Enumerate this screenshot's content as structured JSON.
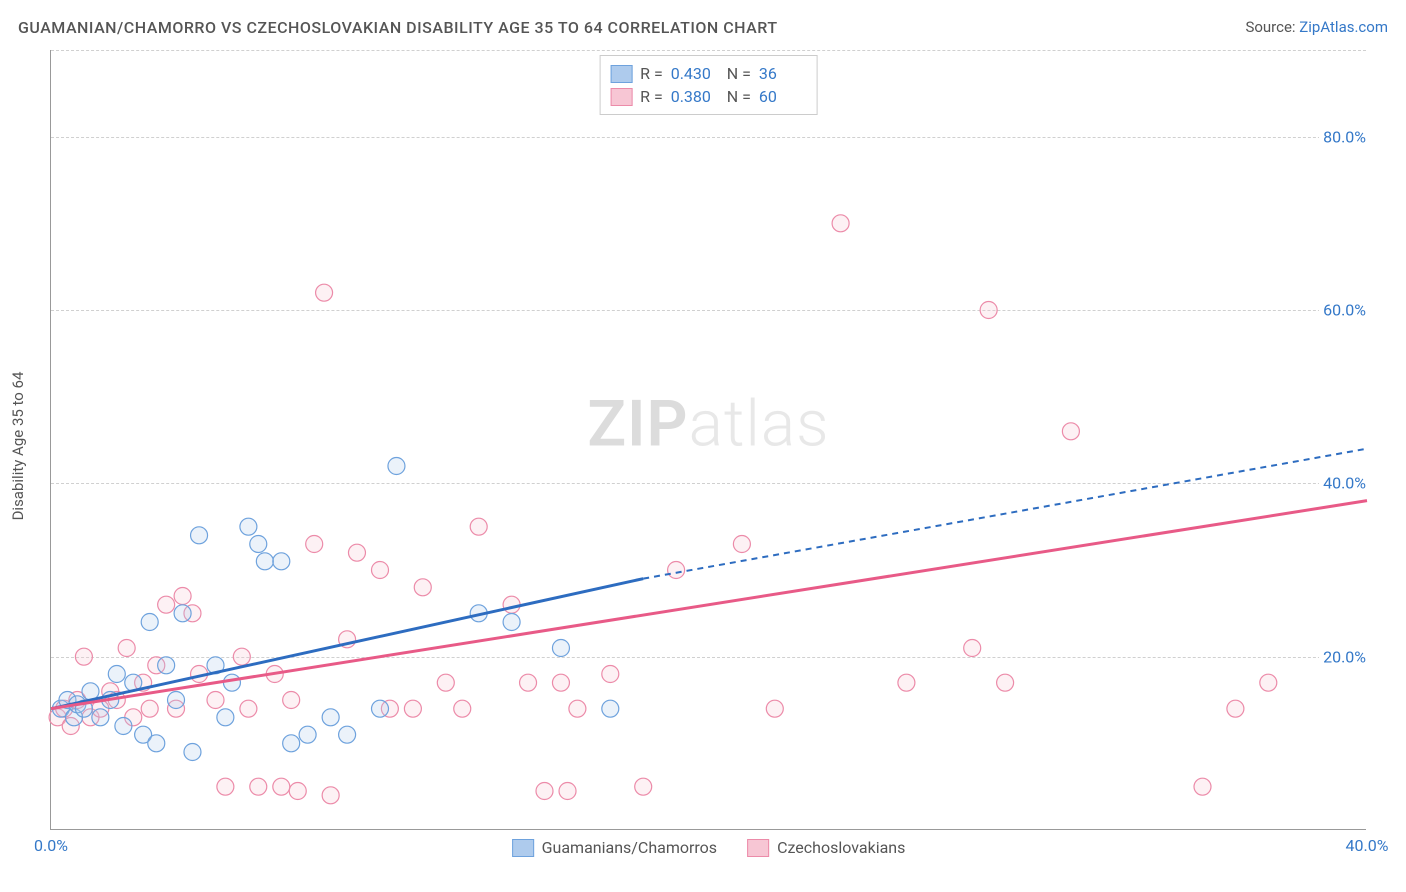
{
  "title": "GUAMANIAN/CHAMORRO VS CZECHOSLOVAKIAN DISABILITY AGE 35 TO 64 CORRELATION CHART",
  "source_label": "Source: ",
  "source_link": "ZipAtlas.com",
  "ylabel": "Disability Age 35 to 64",
  "watermark_a": "ZIP",
  "watermark_b": "atlas",
  "chart": {
    "type": "scatter",
    "xlim": [
      0,
      40
    ],
    "ylim": [
      0,
      90
    ],
    "xticks": [
      {
        "v": 0,
        "label": "0.0%"
      },
      {
        "v": 40,
        "label": "40.0%"
      }
    ],
    "yticks": [
      {
        "v": 20,
        "label": "20.0%"
      },
      {
        "v": 40,
        "label": "40.0%"
      },
      {
        "v": 60,
        "label": "60.0%"
      },
      {
        "v": 80,
        "label": "80.0%"
      }
    ],
    "background_color": "#ffffff",
    "grid_color": "#d0d0d0",
    "marker_radius": 8.5,
    "marker_stroke_width": 1.2,
    "marker_fill_opacity": 0.25,
    "stats_legend": [
      {
        "swatch_fill": "#aecbed",
        "swatch_border": "#6ea2dd",
        "r_label": "R = ",
        "r": "0.430",
        "n_label": "N = ",
        "n": "36"
      },
      {
        "swatch_fill": "#f7c6d4",
        "swatch_border": "#ec8ba9",
        "r_label": "R = ",
        "r": "0.380",
        "n_label": "N = ",
        "n": "60"
      }
    ],
    "series_legend": [
      {
        "swatch_fill": "#aecbed",
        "swatch_border": "#6ea2dd",
        "label": "Guamanians/Chamorros"
      },
      {
        "swatch_fill": "#f7c6d4",
        "swatch_border": "#ec8ba9",
        "label": "Czechoslovakians"
      }
    ],
    "series": [
      {
        "name": "Guamanians/Chamorros",
        "color_fill": "#aecbed",
        "color_stroke": "#6ea2dd",
        "trend_color": "#2d6cc0",
        "trend_solid": {
          "x1": 0,
          "y1": 14,
          "x2": 18,
          "y2": 29
        },
        "trend_dash": {
          "x1": 18,
          "y1": 29,
          "x2": 40,
          "y2": 44
        },
        "points": [
          [
            0.3,
            14
          ],
          [
            0.5,
            15
          ],
          [
            0.7,
            13
          ],
          [
            0.8,
            14.5
          ],
          [
            1,
            14
          ],
          [
            1.2,
            16
          ],
          [
            1.5,
            13
          ],
          [
            1.8,
            15
          ],
          [
            2,
            18
          ],
          [
            2.2,
            12
          ],
          [
            2.5,
            17
          ],
          [
            2.8,
            11
          ],
          [
            3,
            24
          ],
          [
            3.2,
            10
          ],
          [
            3.5,
            19
          ],
          [
            3.8,
            15
          ],
          [
            4,
            25
          ],
          [
            4.3,
            9
          ],
          [
            4.5,
            34
          ],
          [
            5,
            19
          ],
          [
            5.3,
            13
          ],
          [
            5.5,
            17
          ],
          [
            6,
            35
          ],
          [
            6.3,
            33
          ],
          [
            6.5,
            31
          ],
          [
            7,
            31
          ],
          [
            7.3,
            10
          ],
          [
            7.8,
            11
          ],
          [
            8.5,
            13
          ],
          [
            9,
            11
          ],
          [
            10,
            14
          ],
          [
            10.5,
            42
          ],
          [
            13,
            25
          ],
          [
            14,
            24
          ],
          [
            15.5,
            21
          ],
          [
            17,
            14
          ]
        ]
      },
      {
        "name": "Czechoslovakians",
        "color_fill": "#f7c6d4",
        "color_stroke": "#ec8ba9",
        "trend_color": "#e85a87",
        "trend_solid": {
          "x1": 0,
          "y1": 14,
          "x2": 40,
          "y2": 38
        },
        "trend_dash": null,
        "points": [
          [
            0.2,
            13
          ],
          [
            0.4,
            14
          ],
          [
            0.6,
            12
          ],
          [
            0.8,
            15
          ],
          [
            1,
            20
          ],
          [
            1.2,
            13
          ],
          [
            1.5,
            14
          ],
          [
            1.8,
            16
          ],
          [
            2,
            15
          ],
          [
            2.3,
            21
          ],
          [
            2.5,
            13
          ],
          [
            2.8,
            17
          ],
          [
            3,
            14
          ],
          [
            3.2,
            19
          ],
          [
            3.5,
            26
          ],
          [
            3.8,
            14
          ],
          [
            4,
            27
          ],
          [
            4.3,
            25
          ],
          [
            4.5,
            18
          ],
          [
            5,
            15
          ],
          [
            5.3,
            5
          ],
          [
            5.8,
            20
          ],
          [
            6,
            14
          ],
          [
            6.3,
            5
          ],
          [
            6.8,
            18
          ],
          [
            7,
            5
          ],
          [
            7.3,
            15
          ],
          [
            7.5,
            4.5
          ],
          [
            8,
            33
          ],
          [
            8.3,
            62
          ],
          [
            8.5,
            4
          ],
          [
            9,
            22
          ],
          [
            9.3,
            32
          ],
          [
            10,
            30
          ],
          [
            10.3,
            14
          ],
          [
            11,
            14
          ],
          [
            11.3,
            28
          ],
          [
            12,
            17
          ],
          [
            12.5,
            14
          ],
          [
            13,
            35
          ],
          [
            14,
            26
          ],
          [
            14.5,
            17
          ],
          [
            15,
            4.5
          ],
          [
            15.5,
            17
          ],
          [
            15.7,
            4.5
          ],
          [
            16,
            14
          ],
          [
            17,
            18
          ],
          [
            18,
            5
          ],
          [
            19,
            30
          ],
          [
            21,
            33
          ],
          [
            22,
            14
          ],
          [
            24,
            70
          ],
          [
            26,
            17
          ],
          [
            28,
            21
          ],
          [
            28.5,
            60
          ],
          [
            29,
            17
          ],
          [
            31,
            46
          ],
          [
            35,
            5
          ],
          [
            36,
            14
          ],
          [
            37,
            17
          ]
        ]
      }
    ]
  }
}
